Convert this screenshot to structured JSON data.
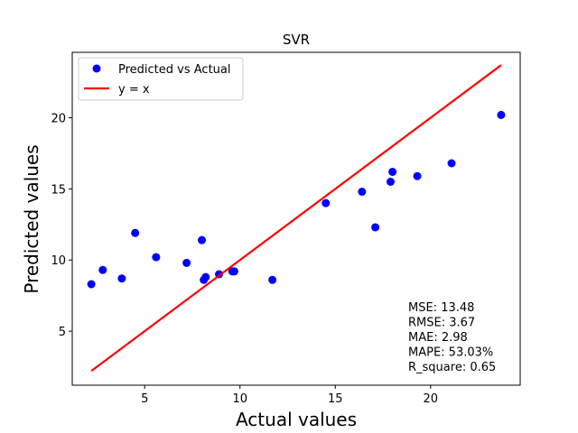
{
  "chart_data": {
    "type": "scatter",
    "title": "SVR",
    "xlabel": "Actual values",
    "ylabel": "Predicted values",
    "xlim": [
      1.2,
      24.7
    ],
    "ylim": [
      1.2,
      24.6
    ],
    "xticks": [
      5,
      10,
      15,
      20
    ],
    "yticks": [
      5,
      10,
      15,
      20
    ],
    "grid": false,
    "legend_position": "top-left",
    "series": [
      {
        "name": "Predicted vs Actual",
        "kind": "scatter",
        "color": "#0000ff",
        "points": [
          {
            "x": 2.2,
            "y": 8.3
          },
          {
            "x": 2.8,
            "y": 9.3
          },
          {
            "x": 3.8,
            "y": 8.7
          },
          {
            "x": 4.5,
            "y": 11.9
          },
          {
            "x": 5.6,
            "y": 10.2
          },
          {
            "x": 7.2,
            "y": 9.8
          },
          {
            "x": 8.0,
            "y": 11.4
          },
          {
            "x": 8.1,
            "y": 8.6
          },
          {
            "x": 8.2,
            "y": 8.8
          },
          {
            "x": 8.9,
            "y": 9.0
          },
          {
            "x": 9.6,
            "y": 9.2
          },
          {
            "x": 9.7,
            "y": 9.2
          },
          {
            "x": 11.7,
            "y": 8.6
          },
          {
            "x": 14.5,
            "y": 14.0
          },
          {
            "x": 16.4,
            "y": 14.8
          },
          {
            "x": 17.1,
            "y": 12.3
          },
          {
            "x": 17.9,
            "y": 15.5
          },
          {
            "x": 18.0,
            "y": 16.2
          },
          {
            "x": 19.3,
            "y": 15.9
          },
          {
            "x": 21.1,
            "y": 16.8
          },
          {
            "x": 23.7,
            "y": 20.2
          }
        ]
      },
      {
        "name": "y = x",
        "kind": "line",
        "color": "#ff0000",
        "points": [
          {
            "x": 2.2,
            "y": 2.2
          },
          {
            "x": 23.7,
            "y": 23.7
          }
        ]
      }
    ],
    "annotations": [
      "MSE: 13.48",
      "RMSE: 3.67",
      "MAE: 2.98",
      "MAPE: 53.03%",
      "R_square: 0.65"
    ]
  }
}
